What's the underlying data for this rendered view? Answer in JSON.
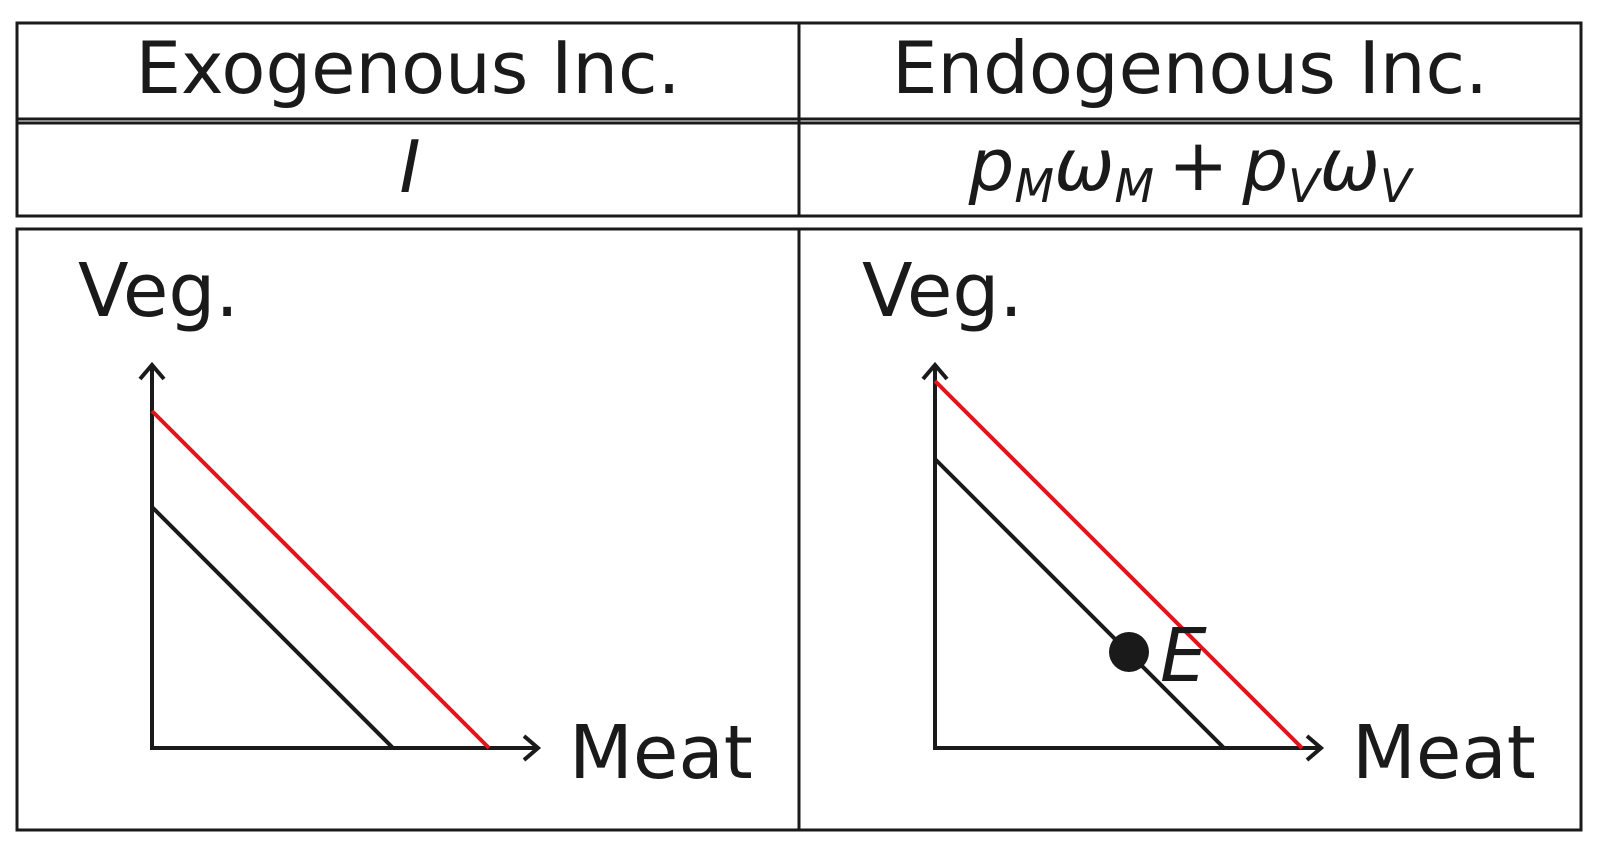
{
  "table": {
    "headers": {
      "left": "Exogenous Inc.",
      "right": "Endogenous Inc."
    },
    "income_formula": {
      "left": {
        "symbol": "I"
      },
      "right": {
        "p1": "p",
        "s1": "M",
        "w1": "ω",
        "t1": "M",
        "plus": "+",
        "p2": "p",
        "s2": "V",
        "w2": "ω",
        "t2": "V"
      }
    }
  },
  "diagrams": {
    "left": {
      "y_axis_label": "Veg.",
      "x_axis_label": "Meat"
    },
    "right": {
      "y_axis_label": "Veg.",
      "x_axis_label": "Meat",
      "endowment_label": "E"
    }
  },
  "colors": {
    "original_budget_line": "#1a1a1a",
    "shifted_budget_line": "#e0141b",
    "frame": "#1a1a1a"
  }
}
